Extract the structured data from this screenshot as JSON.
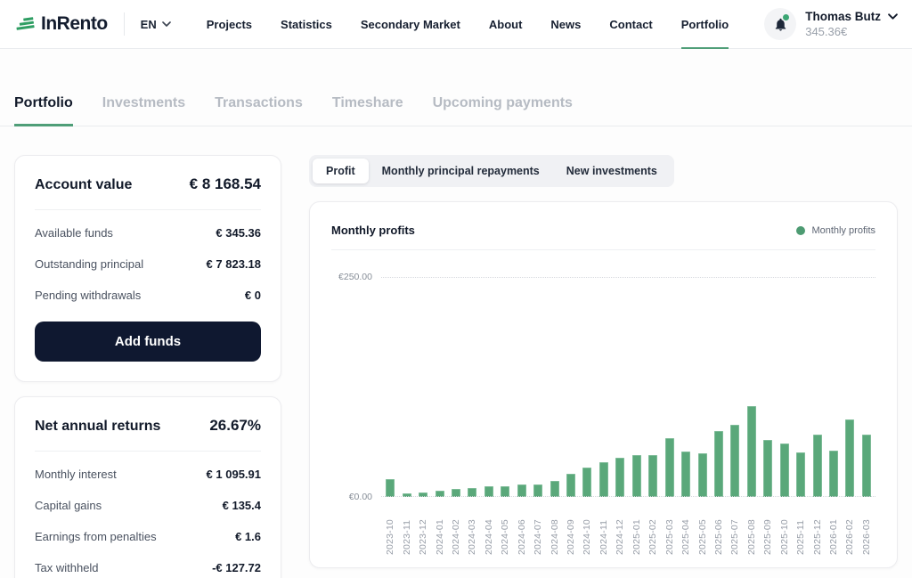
{
  "header": {
    "brand": "InRento",
    "language": "EN",
    "nav": [
      {
        "label": "Projects"
      },
      {
        "label": "Statistics"
      },
      {
        "label": "Secondary Market"
      },
      {
        "label": "About"
      },
      {
        "label": "News"
      },
      {
        "label": "Contact"
      },
      {
        "label": "Portfolio",
        "active": true
      }
    ],
    "user": {
      "name": "Thomas Butz",
      "balance": "345.36€"
    }
  },
  "tabs": {
    "items": [
      {
        "label": "Portfolio",
        "active": true
      },
      {
        "label": "Investments"
      },
      {
        "label": "Transactions"
      },
      {
        "label": "Timeshare"
      },
      {
        "label": "Upcoming payments"
      }
    ]
  },
  "account_card": {
    "title": "Account value",
    "value": "€ 8 168.54",
    "rows": [
      {
        "label": "Available funds",
        "value": "€ 345.36"
      },
      {
        "label": "Outstanding principal",
        "value": "€ 7 823.18"
      },
      {
        "label": "Pending withdrawals",
        "value": "€ 0"
      }
    ],
    "button_label": "Add funds"
  },
  "returns_card": {
    "title": "Net annual returns",
    "value": "26.67%",
    "rows": [
      {
        "label": "Monthly interest",
        "value": "€ 1 095.91"
      },
      {
        "label": "Capital gains",
        "value": "€ 135.4"
      },
      {
        "label": "Earnings from penalties",
        "value": "€ 1.6"
      },
      {
        "label": "Tax withheld",
        "value": "-€ 127.72"
      }
    ]
  },
  "chart_toggle": {
    "segments": [
      {
        "label": "Profit",
        "active": true
      },
      {
        "label": "Monthly principal repayments"
      },
      {
        "label": "New investments"
      }
    ]
  },
  "chart_card": {
    "title": "Monthly profits",
    "legend_label": "Monthly profits"
  },
  "chart_data": {
    "type": "bar",
    "title": "Monthly profits",
    "categories": [
      "2023-10",
      "2023-11",
      "2023-12",
      "2024-01",
      "2024-02",
      "2024-03",
      "2024-04",
      "2024-05",
      "2024-06",
      "2024-07",
      "2024-08",
      "2024-09",
      "2024-10",
      "2024-11",
      "2024-12",
      "2025-01",
      "2025-02",
      "2025-03",
      "2025-04",
      "2025-05",
      "2025-06",
      "2025-07",
      "2025-08",
      "2025-09",
      "2025-10",
      "2025-11",
      "2025-12",
      "2026-01",
      "2026-02",
      "2026-03"
    ],
    "values": [
      20,
      4,
      5,
      7,
      9,
      10,
      12,
      12,
      14,
      14,
      18,
      26,
      33,
      39,
      45,
      48,
      48,
      67,
      52,
      50,
      75,
      82,
      103,
      65,
      61,
      51,
      71,
      53,
      88,
      71
    ],
    "xlabel": "",
    "ylabel": "",
    "ylim": [
      0,
      250
    ],
    "ytick_labels": [
      "€0.00",
      "€250.00"
    ],
    "grid": "horizontal dotted lines at 0 and 250",
    "legend": [
      {
        "label": "Monthly profits",
        "color": "#4d9b72"
      }
    ],
    "legend_position": "top-right",
    "bar_color": "#5aa87a"
  },
  "colors": {
    "accent_green": "#4f9e78",
    "bar_green": "#5aa87a",
    "legend_green": "#4d9b72",
    "logo_green": "#2f9e63",
    "button_navy": "#0f1830",
    "notification_green": "#3ba573"
  }
}
